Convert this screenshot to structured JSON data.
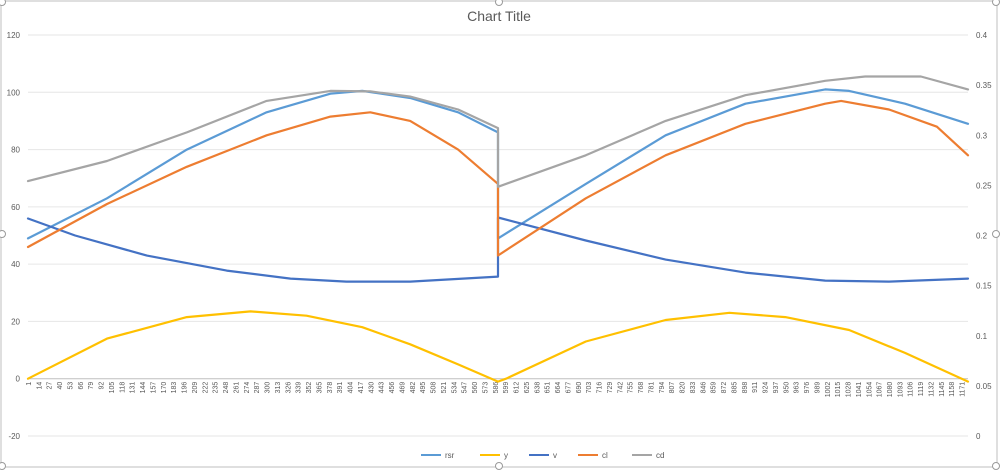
{
  "chart_data": {
    "type": "line",
    "title": "Chart Title",
    "grid": true,
    "legend_position": "bottom",
    "x_axis": {
      "min": 1,
      "max": 1179,
      "tick_labels": [
        1,
        14,
        27,
        40,
        53,
        66,
        79,
        92,
        105,
        118,
        131,
        144,
        157,
        170,
        183,
        196,
        209,
        222,
        235,
        248,
        261,
        274,
        287,
        300,
        313,
        326,
        339,
        352,
        365,
        378,
        391,
        404,
        417,
        430,
        443,
        456,
        469,
        482,
        495,
        508,
        521,
        534,
        547,
        560,
        573,
        586,
        599,
        612,
        625,
        638,
        651,
        664,
        677,
        690,
        703,
        716,
        729,
        742,
        755,
        768,
        781,
        794,
        807,
        820,
        833,
        846,
        859,
        872,
        885,
        898,
        911,
        924,
        937,
        950,
        963,
        976,
        989,
        1002,
        1015,
        1028,
        1041,
        1054,
        1067,
        1080,
        1093,
        1106,
        1119,
        1132,
        1145,
        1158,
        1171
      ]
    },
    "y_axis_left": {
      "min": -20,
      "max": 120,
      "ticks": [
        -20,
        0,
        20,
        40,
        60,
        80,
        100,
        120
      ]
    },
    "y_axis_right": {
      "min": 0,
      "max": 0.4,
      "ticks": [
        "0",
        "0.05",
        "0.1",
        "0.15",
        "0.2",
        "0.25",
        "0.3",
        "0.35",
        "0.4"
      ]
    },
    "series": [
      {
        "name": "rsr",
        "color": "#5b9bd5",
        "axis": "left",
        "points": [
          [
            1,
            49
          ],
          [
            100,
            63
          ],
          [
            200,
            80
          ],
          [
            300,
            93
          ],
          [
            380,
            99.5
          ],
          [
            420,
            100.5
          ],
          [
            480,
            98
          ],
          [
            540,
            93
          ],
          [
            590,
            86
          ],
          [
            590,
            49
          ],
          [
            700,
            68
          ],
          [
            800,
            85
          ],
          [
            900,
            96
          ],
          [
            1000,
            101
          ],
          [
            1030,
            100.5
          ],
          [
            1100,
            96
          ],
          [
            1179,
            89
          ]
        ]
      },
      {
        "name": "y",
        "color": "#ffc000",
        "axis": "left",
        "points": [
          [
            1,
            0
          ],
          [
            100,
            14
          ],
          [
            200,
            21.5
          ],
          [
            280,
            23.5
          ],
          [
            350,
            22
          ],
          [
            420,
            18
          ],
          [
            480,
            12
          ],
          [
            540,
            5
          ],
          [
            590,
            -1
          ],
          [
            600,
            0
          ],
          [
            700,
            13
          ],
          [
            800,
            20.5
          ],
          [
            880,
            23
          ],
          [
            950,
            21.5
          ],
          [
            1030,
            17
          ],
          [
            1100,
            9
          ],
          [
            1179,
            -1
          ]
        ]
      },
      {
        "name": "v",
        "color": "#4472c4",
        "axis": "right",
        "points": [
          [
            1,
            0.217
          ],
          [
            60,
            0.2
          ],
          [
            150,
            0.18
          ],
          [
            250,
            0.165
          ],
          [
            330,
            0.157
          ],
          [
            400,
            0.154
          ],
          [
            480,
            0.154
          ],
          [
            590,
            0.159
          ],
          [
            590,
            0.218
          ],
          [
            700,
            0.195
          ],
          [
            800,
            0.176
          ],
          [
            900,
            0.163
          ],
          [
            1000,
            0.155
          ],
          [
            1080,
            0.154
          ],
          [
            1179,
            0.157
          ]
        ]
      },
      {
        "name": "cl",
        "color": "#ed7d31",
        "axis": "left",
        "points": [
          [
            1,
            46
          ],
          [
            100,
            61
          ],
          [
            200,
            74
          ],
          [
            300,
            85
          ],
          [
            380,
            91.5
          ],
          [
            430,
            93
          ],
          [
            480,
            90
          ],
          [
            540,
            80
          ],
          [
            590,
            68
          ],
          [
            590,
            43
          ],
          [
            700,
            63
          ],
          [
            800,
            78
          ],
          [
            900,
            89
          ],
          [
            1000,
            96
          ],
          [
            1020,
            97
          ],
          [
            1080,
            94
          ],
          [
            1140,
            88
          ],
          [
            1179,
            78
          ]
        ]
      },
      {
        "name": "cd",
        "color": "#a5a5a5",
        "axis": "left",
        "points": [
          [
            1,
            69
          ],
          [
            100,
            76
          ],
          [
            200,
            86
          ],
          [
            300,
            97
          ],
          [
            380,
            100.5
          ],
          [
            430,
            100.3
          ],
          [
            480,
            98.5
          ],
          [
            540,
            94
          ],
          [
            590,
            87.5
          ],
          [
            590,
            67
          ],
          [
            700,
            78
          ],
          [
            800,
            90
          ],
          [
            900,
            99
          ],
          [
            1000,
            104
          ],
          [
            1050,
            105.5
          ],
          [
            1120,
            105.5
          ],
          [
            1179,
            101
          ]
        ]
      }
    ]
  }
}
